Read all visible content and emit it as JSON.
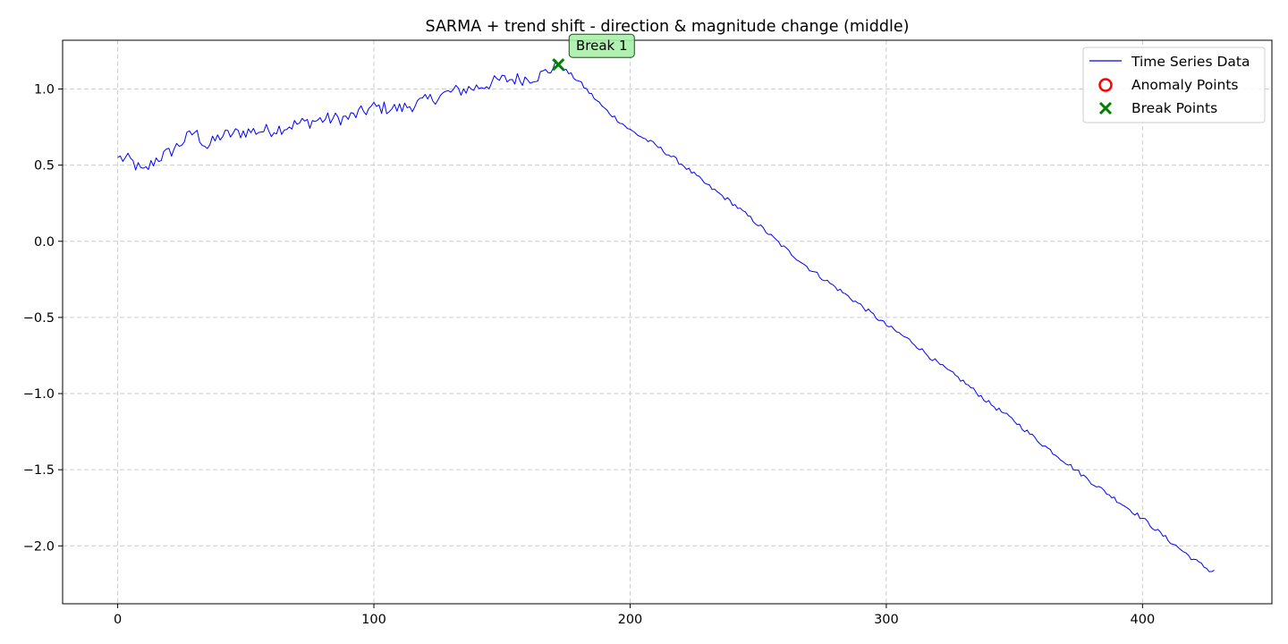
{
  "chart_data": {
    "type": "line",
    "title": "SARMA + trend shift - direction & magnitude change (middle)",
    "xlabel": "",
    "ylabel": "",
    "xlim": [
      -21.5,
      450.5
    ],
    "ylim": [
      -2.38,
      1.32
    ],
    "xticks": [
      0,
      100,
      200,
      300,
      400
    ],
    "yticks": [
      1.0,
      0.5,
      0.0,
      -0.5,
      -1.0,
      -1.5,
      -2.0
    ],
    "xtick_labels": [
      "0",
      "100",
      "200",
      "300",
      "400"
    ],
    "ytick_labels": [
      "1.0",
      "0.5",
      "0.0",
      "−0.5",
      "−1.0",
      "−1.5",
      "−2.0"
    ],
    "grid": true,
    "legend_position": "top-right",
    "legend": [
      {
        "label": "Time Series Data",
        "marker": "line",
        "color": "#0000ff"
      },
      {
        "label": "Anomaly Points",
        "marker": "circle",
        "color": "#ff0000"
      },
      {
        "label": "Break Points",
        "marker": "x",
        "color": "#008000"
      }
    ],
    "series": [
      {
        "name": "Time Series Data",
        "color": "#0000ff",
        "x_start": 0,
        "x_step": 1,
        "keypoints": [
          [
            0,
            0.55
          ],
          [
            5,
            0.53
          ],
          [
            10,
            0.45
          ],
          [
            15,
            0.54
          ],
          [
            20,
            0.58
          ],
          [
            25,
            0.65
          ],
          [
            30,
            0.72
          ],
          [
            35,
            0.62
          ],
          [
            40,
            0.69
          ],
          [
            50,
            0.72
          ],
          [
            60,
            0.73
          ],
          [
            70,
            0.77
          ],
          [
            80,
            0.8
          ],
          [
            90,
            0.81
          ],
          [
            100,
            0.88
          ],
          [
            110,
            0.87
          ],
          [
            120,
            0.92
          ],
          [
            130,
            0.98
          ],
          [
            140,
            1.01
          ],
          [
            150,
            1.06
          ],
          [
            160,
            1.07
          ],
          [
            165,
            1.09
          ],
          [
            172,
            1.16
          ],
          [
            180,
            1.05
          ],
          [
            190,
            0.87
          ],
          [
            200,
            0.73
          ],
          [
            210,
            0.63
          ],
          [
            220,
            0.51
          ],
          [
            230,
            0.37
          ],
          [
            240,
            0.25
          ],
          [
            250,
            0.11
          ],
          [
            260,
            -0.04
          ],
          [
            270,
            -0.18
          ],
          [
            280,
            -0.3
          ],
          [
            290,
            -0.42
          ],
          [
            300,
            -0.55
          ],
          [
            310,
            -0.66
          ],
          [
            320,
            -0.8
          ],
          [
            330,
            -0.92
          ],
          [
            340,
            -1.06
          ],
          [
            350,
            -1.18
          ],
          [
            360,
            -1.32
          ],
          [
            370,
            -1.45
          ],
          [
            380,
            -1.58
          ],
          [
            390,
            -1.7
          ],
          [
            400,
            -1.82
          ],
          [
            410,
            -1.96
          ],
          [
            420,
            -2.09
          ],
          [
            427,
            -2.17
          ],
          [
            428,
            -2.16
          ]
        ]
      }
    ],
    "anomaly_points": [],
    "break_points": [
      {
        "x": 172,
        "y": 1.16,
        "label": "Break 1"
      }
    ]
  }
}
